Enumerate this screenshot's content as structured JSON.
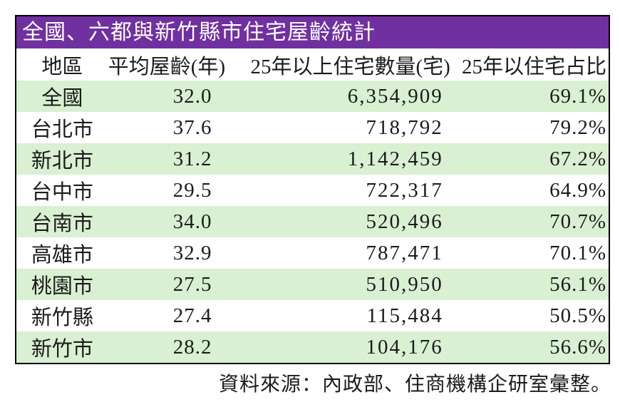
{
  "title": "全國、六都與新竹縣市住宅屋齡統計",
  "colors": {
    "title_bg": "#7030A0",
    "title_text": "#FFFFFF",
    "row_stripe": "#D9F0D2",
    "border": "#000000"
  },
  "columns": {
    "region": "地區",
    "avg_age": "平均屋齡(年)",
    "count_25y": "25年以上住宅數量(宅)",
    "share_25y": "25年以住宅占比"
  },
  "rows": [
    {
      "region": "全國",
      "avg_age": "32.0",
      "count": "6,354,909",
      "share": "69.1%"
    },
    {
      "region": "台北市",
      "avg_age": "37.6",
      "count": "718,792",
      "share": "79.2%"
    },
    {
      "region": "新北市",
      "avg_age": "31.2",
      "count": "1,142,459",
      "share": "67.2%"
    },
    {
      "region": "台中市",
      "avg_age": "29.5",
      "count": "722,317",
      "share": "64.9%"
    },
    {
      "region": "台南市",
      "avg_age": "34.0",
      "count": "520,496",
      "share": "70.7%"
    },
    {
      "region": "高雄市",
      "avg_age": "32.9",
      "count": "787,471",
      "share": "70.1%"
    },
    {
      "region": "桃園市",
      "avg_age": "27.5",
      "count": "510,950",
      "share": "56.1%"
    },
    {
      "region": "新竹縣",
      "avg_age": "27.4",
      "count": "115,484",
      "share": "50.5%"
    },
    {
      "region": "新竹市",
      "avg_age": "28.2",
      "count": "104,176",
      "share": "56.6%"
    }
  ],
  "footer": {
    "source_note": "資料來源：內政部、住商機構企研室彙整。"
  },
  "chart_data": {
    "type": "table",
    "title": "全國、六都與新竹縣市住宅屋齡統計",
    "columns": [
      "地區",
      "平均屋齡(年)",
      "25年以上住宅數量(宅)",
      "25年以住宅占比"
    ],
    "rows": [
      [
        "全國",
        32.0,
        6354909,
        "69.1%"
      ],
      [
        "台北市",
        37.6,
        718792,
        "79.2%"
      ],
      [
        "新北市",
        31.2,
        1142459,
        "67.2%"
      ],
      [
        "台中市",
        29.5,
        722317,
        "64.9%"
      ],
      [
        "台南市",
        34.0,
        520496,
        "70.7%"
      ],
      [
        "高雄市",
        32.9,
        787471,
        "70.1%"
      ],
      [
        "桃園市",
        27.5,
        510950,
        "56.1%"
      ],
      [
        "新竹縣",
        27.4,
        115484,
        "50.5%"
      ],
      [
        "新竹市",
        28.2,
        104176,
        "56.6%"
      ]
    ],
    "source": "資料來源：內政部、住商機構企研室彙整。"
  }
}
